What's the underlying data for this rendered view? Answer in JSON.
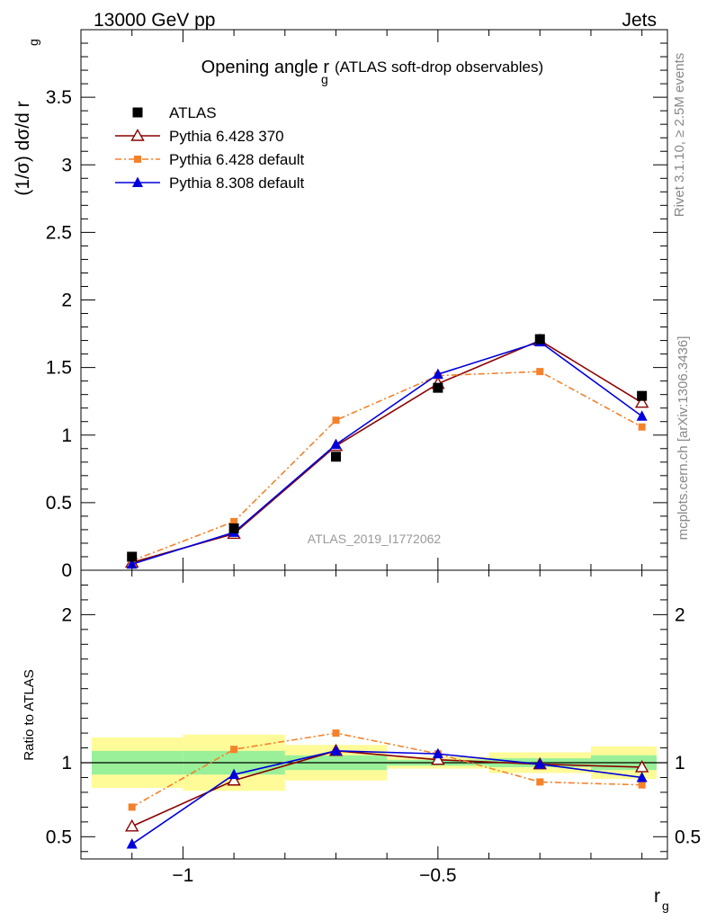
{
  "header": {
    "left": "13000 GeV pp",
    "right": "Jets"
  },
  "side": {
    "rivet": "Rivet 3.1.10, ≥ 2.5M events",
    "mcplots": "mcplots.cern.ch [arXiv:1306.3436]"
  },
  "chart_data": {
    "type": "line",
    "title": "Opening angle r",
    "title_sub": "g",
    "subtitle": "(ATLAS soft-drop observables)",
    "watermark": "ATLAS_2019_I1772062",
    "ylabel_main": "(1/σ) dσ/d r",
    "ylabel_main_sub": "g",
    "ylabel_ratio": "Ratio to ATLAS",
    "xlabel": "r",
    "xlabel_sub": "g",
    "xlim": [
      -1.2,
      -0.05
    ],
    "ylim_main": [
      0,
      4.0
    ],
    "ylim_ratio": [
      0.35,
      2.3
    ],
    "x_ticks": [
      {
        "v": -1,
        "label": "−1"
      },
      {
        "v": -0.5,
        "label": "−0.5"
      }
    ],
    "y_ticks_main": [
      {
        "v": 0,
        "label": "0"
      },
      {
        "v": 0.5,
        "label": "0.5"
      },
      {
        "v": 1,
        "label": "1"
      },
      {
        "v": 1.5,
        "label": "1.5"
      },
      {
        "v": 2,
        "label": "2"
      },
      {
        "v": 2.5,
        "label": "2.5"
      },
      {
        "v": 3,
        "label": "3"
      },
      {
        "v": 3.5,
        "label": "3.5"
      }
    ],
    "y_ticks_ratio": [
      {
        "v": 0.5,
        "label": "0.5"
      },
      {
        "v": 1,
        "label": "1"
      },
      {
        "v": 2,
        "label": "2"
      }
    ],
    "x": [
      -1.1,
      -0.9,
      -0.7,
      -0.5,
      -0.3,
      -0.1
    ],
    "bin_edges": [
      -1.2,
      -1.0,
      -0.8,
      -0.6,
      -0.4,
      -0.2,
      -0.05
    ],
    "band_inner": [
      0.08,
      0.08,
      0.05,
      0.02,
      0.03,
      0.05
    ],
    "band_outer": [
      0.17,
      0.19,
      0.12,
      0.04,
      0.07,
      0.11
    ],
    "series": [
      {
        "name": "ATLAS",
        "key": "data",
        "color": "#000000",
        "marker": "square",
        "dash": "none",
        "values": [
          0.1,
          0.31,
          0.84,
          1.35,
          1.71,
          1.29
        ],
        "ratio": [
          1,
          1,
          1,
          1,
          1,
          1
        ]
      },
      {
        "name": "Pythia 6.428 370",
        "key": "p6_370",
        "color": "#8b0000",
        "marker": "triangle-open",
        "dash": "none",
        "values": [
          0.057,
          0.27,
          0.92,
          1.38,
          1.7,
          1.24
        ],
        "ratio": [
          0.57,
          0.88,
          1.08,
          1.02,
          0.99,
          0.97
        ]
      },
      {
        "name": "Pythia 6.428 default",
        "key": "p6_def",
        "color": "#f5812b",
        "marker": "square-small",
        "dash": "dashdot",
        "values": [
          0.07,
          0.36,
          1.11,
          1.44,
          1.47,
          1.06
        ],
        "ratio": [
          0.7,
          1.09,
          1.2,
          1.06,
          0.87,
          0.85
        ]
      },
      {
        "name": "Pythia 8.308 default",
        "key": "p8_def",
        "color": "#0000dd",
        "marker": "triangle",
        "dash": "none",
        "values": [
          0.045,
          0.28,
          0.93,
          1.45,
          1.69,
          1.14
        ],
        "ratio": [
          0.45,
          0.92,
          1.08,
          1.06,
          0.99,
          0.9
        ]
      }
    ],
    "legend_position": "top-left",
    "grid": false
  }
}
